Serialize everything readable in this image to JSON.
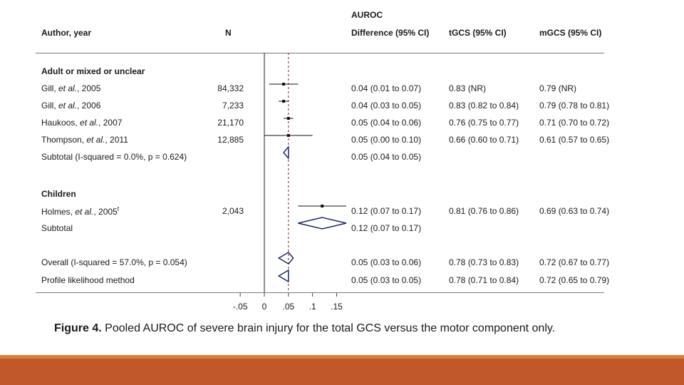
{
  "colors": {
    "diamond": "#1f2a6b",
    "null_line": "#8b1a1a",
    "footer_thin": "#e07b39",
    "footer_bar": "#c0582a"
  },
  "header": {
    "group_title": "AUROC",
    "col_author": "Author, year",
    "col_n": "N",
    "col_diff": "Difference (95% CI)",
    "col_tgcs": "tGCS (95% CI)",
    "col_mgcs": "mGCS (95% CI)"
  },
  "caption": {
    "label": "Figure 4.",
    "text": "Pooled AUROC of severe brain injury for the total GCS versus the motor component only."
  },
  "rows": [
    {
      "kind": "section",
      "author": "Adult or mixed or unclear"
    },
    {
      "kind": "study",
      "author_main": "Gill, ",
      "author_ital": "et al.",
      "author_tail": ", 2005",
      "n": "84,332",
      "diff": "0.04 (0.01 to 0.07)",
      "tgcs": "0.83 (NR)",
      "mgcs": "0.79 (NR)"
    },
    {
      "kind": "study",
      "author_main": "Gill, ",
      "author_ital": "et al.",
      "author_tail": ", 2006",
      "n": "7,233",
      "diff": "0.04 (0.03 to 0.05)",
      "tgcs": "0.83 (0.82 to 0.84)",
      "mgcs": "0.79 (0.78 to 0.81)"
    },
    {
      "kind": "study",
      "author_main": "Haukoos, ",
      "author_ital": "et al.",
      "author_tail": ", 2007",
      "n": "21,170",
      "diff": "0.05 (0.04 to 0.06)",
      "tgcs": "0.76 (0.75 to 0.77)",
      "mgcs": "0.71 (0.70 to 0.72)"
    },
    {
      "kind": "study",
      "author_main": "Thompson, ",
      "author_ital": "et al.",
      "author_tail": ", 2011",
      "n": "12,885",
      "diff": "0.05 (0.00 to 0.10)",
      "tgcs": "0.66 (0.60 to 0.71)",
      "mgcs": "0.61 (0.57 to 0.65)"
    },
    {
      "kind": "summary",
      "author": "Subtotal  (I-squared = 0.0%, p = 0.624)",
      "diff": "0.05 (0.04 to 0.05)"
    },
    {
      "kind": "section",
      "author": "Children"
    },
    {
      "kind": "study",
      "author_main": "Holmes, ",
      "author_ital": "et al.",
      "author_tail": ", 2005",
      "author_sup": "f",
      "n": "2,043",
      "diff": "0.12 (0.07 to 0.17)",
      "tgcs": "0.81 (0.76 to 0.86)",
      "mgcs": "0.69 (0.63 to 0.74)"
    },
    {
      "kind": "summary",
      "author": "Subtotal",
      "diff": "0.12 (0.07 to 0.17)"
    },
    {
      "kind": "summary",
      "author": "Overall  (I-squared = 57.0%, p = 0.054)",
      "diff": "0.05 (0.03 to 0.06)",
      "tgcs": "0.78 (0.73 to 0.83)",
      "mgcs": "0.72 (0.67 to 0.77)"
    },
    {
      "kind": "summary",
      "author": "Profile likelihood method",
      "diff": "0.05 (0.03 to 0.05)",
      "tgcs": "0.78 (0.71 to 0.84)",
      "mgcs": "0.72 (0.65 to 0.79)"
    }
  ],
  "chart_data": {
    "type": "forest",
    "title": "AUROC",
    "x_ticks": [
      "-.05",
      "0",
      ".05",
      ".1",
      ".15"
    ],
    "xlim": [
      -0.05,
      0.15
    ],
    "reference_line": 0,
    "overall_line": 0.05,
    "studies": [
      {
        "label": "Gill, et al., 2005",
        "estimate": 0.04,
        "low": 0.01,
        "high": 0.07
      },
      {
        "label": "Gill, et al., 2006",
        "estimate": 0.04,
        "low": 0.03,
        "high": 0.05
      },
      {
        "label": "Haukoos, et al., 2007",
        "estimate": 0.05,
        "low": 0.04,
        "high": 0.06
      },
      {
        "label": "Thompson, et al., 2011",
        "estimate": 0.05,
        "low": 0.0,
        "high": 0.1
      },
      {
        "label": "Holmes, et al., 2005",
        "estimate": 0.12,
        "low": 0.07,
        "high": 0.17
      }
    ],
    "summaries": [
      {
        "label": "Subtotal (adult)",
        "estimate": 0.05,
        "low": 0.04,
        "high": 0.05
      },
      {
        "label": "Subtotal (children)",
        "estimate": 0.12,
        "low": 0.07,
        "high": 0.17
      },
      {
        "label": "Overall",
        "estimate": 0.05,
        "low": 0.03,
        "high": 0.06
      },
      {
        "label": "Profile likelihood method",
        "estimate": 0.05,
        "low": 0.03,
        "high": 0.05
      }
    ]
  }
}
